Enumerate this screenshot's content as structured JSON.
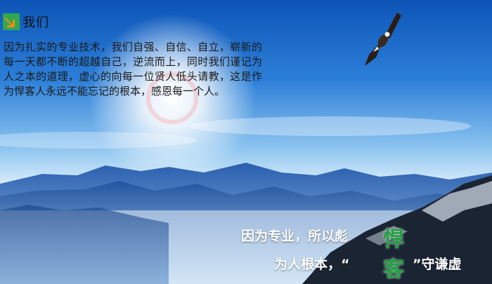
{
  "header": {
    "title": "我们"
  },
  "intro": {
    "text": "因为扎实的专业技术，我们自强、自信、自立，崭新的每一天都不断的超越自己，逆流而上，同时我们谨记为人之本的道理，虚心的向每一位贤人低头请教，这是作为悍客人永远不能忘记的根本，感恩每一个人。"
  },
  "slogan": {
    "line1": "因为专业，所以彪",
    "char1": "悍",
    "line2": "为人根本，“",
    "char2": "客",
    "line2_end": "”守谦虚"
  },
  "icons": {
    "logo": "logo-arrow-icon",
    "eagle": "eagle-icon"
  },
  "colors": {
    "accent_green": "#22a045",
    "sky_top": "#0d55b8"
  }
}
